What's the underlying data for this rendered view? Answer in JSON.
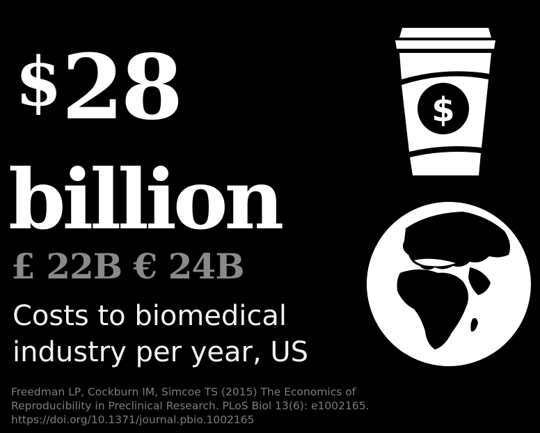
{
  "headline": {
    "symbol": "$",
    "amount": "28",
    "unit": "billion"
  },
  "equivalents": "£ 22B € 24B",
  "caption": {
    "line1": "Costs to biomedical",
    "line2": "industry per year, US"
  },
  "citation": {
    "line1": "Freedman LP, Cockburn IM, Simcoe TS (2015) The Economics of",
    "line2": "Reproducibility in Preclinical Research. PLoS Biol 13(6): e1002165.",
    "line3": "https://doi.org/10.1371/journal.pbio.1002165"
  },
  "icons": {
    "cup": "coffee-cup-dollar-icon",
    "cup_symbol": "$",
    "globe": "globe-icon"
  },
  "colors": {
    "background": "#000000",
    "primary_text": "#ffffff",
    "secondary_text": "#8a8a8a",
    "citation_text": "#7d7d7d"
  }
}
